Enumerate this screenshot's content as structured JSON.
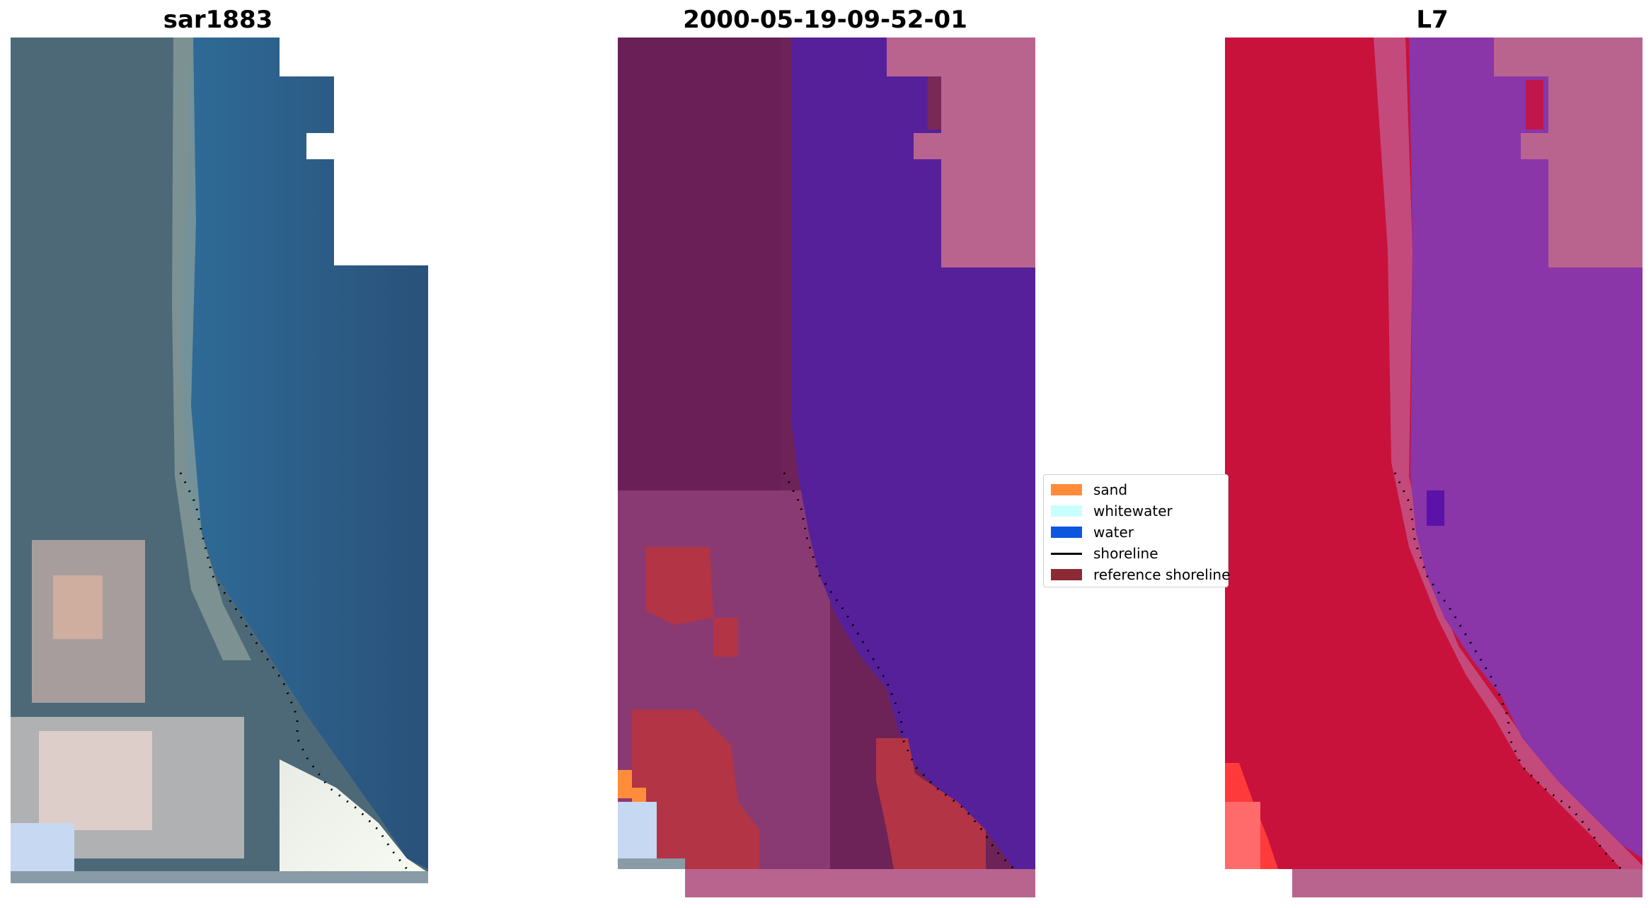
{
  "panels": [
    {
      "title": "sar1883"
    },
    {
      "title": "2000-05-19-09-52-01"
    },
    {
      "title": "L7"
    }
  ],
  "legend": {
    "items": [
      {
        "label": "sand",
        "color": "#ff8c3a",
        "kind": "patch"
      },
      {
        "label": "whitewater",
        "color": "#c8ffff",
        "kind": "patch"
      },
      {
        "label": "water",
        "color": "#0b57e0",
        "kind": "patch"
      },
      {
        "label": "shoreline",
        "color": "#000000",
        "kind": "line"
      },
      {
        "label": "reference shoreline",
        "color": "#8b2a35",
        "kind": "patch"
      }
    ]
  },
  "colors": {
    "rgb_water": "#2f6a96",
    "rgb_land": "#4b6a78",
    "classified_water": "#55209a",
    "classified_land": "#6c2357",
    "classified_nodata": "#b9648f",
    "false_color_land": "#c8123c",
    "false_color_water": "#8a35a8",
    "false_color_nodata": "#b9648f"
  }
}
